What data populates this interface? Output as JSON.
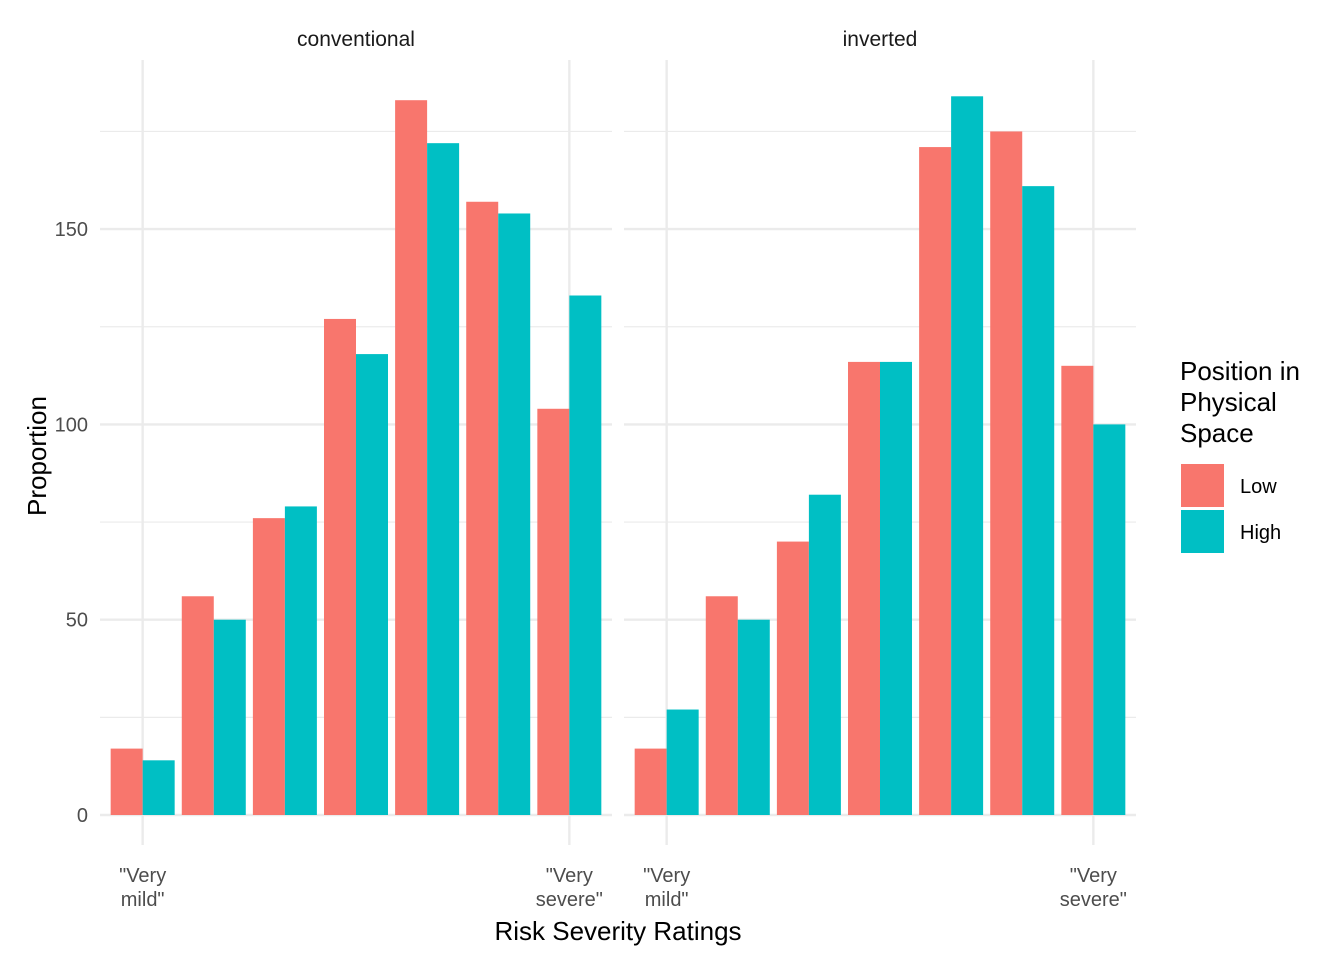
{
  "chart_data": {
    "type": "bar",
    "ylabel": "Proportion",
    "xlabel": "Risk Severity Ratings",
    "ylim": [
      0,
      190
    ],
    "yticks": [
      0,
      50,
      100,
      150
    ],
    "y_tick_labels": [
      "0",
      "50",
      "100",
      "150"
    ],
    "x_tick_labels": [
      {
        "category": 1,
        "lines": [
          "\"Very",
          "mild\""
        ]
      },
      {
        "category": 7,
        "lines": [
          "\"Very",
          "severe\""
        ]
      }
    ],
    "categories": [
      1,
      2,
      3,
      4,
      5,
      6,
      7
    ],
    "grid": true,
    "legend": {
      "title_lines": [
        "Position in",
        "Physical",
        "Space"
      ],
      "placement": "right"
    },
    "colors": {
      "Low": "#F8766D",
      "High": "#00BFC4"
    },
    "facets": [
      {
        "name": "conventional",
        "series": [
          {
            "name": "Low",
            "values": [
              17,
              56,
              76,
              127,
              183,
              157,
              104
            ]
          },
          {
            "name": "High",
            "values": [
              14,
              50,
              79,
              118,
              172,
              154,
              133
            ]
          }
        ]
      },
      {
        "name": "inverted",
        "series": [
          {
            "name": "Low",
            "values": [
              17,
              56,
              70,
              116,
              171,
              175,
              115
            ]
          },
          {
            "name": "High",
            "values": [
              27,
              50,
              82,
              116,
              184,
              161,
              100
            ]
          }
        ]
      }
    ]
  }
}
